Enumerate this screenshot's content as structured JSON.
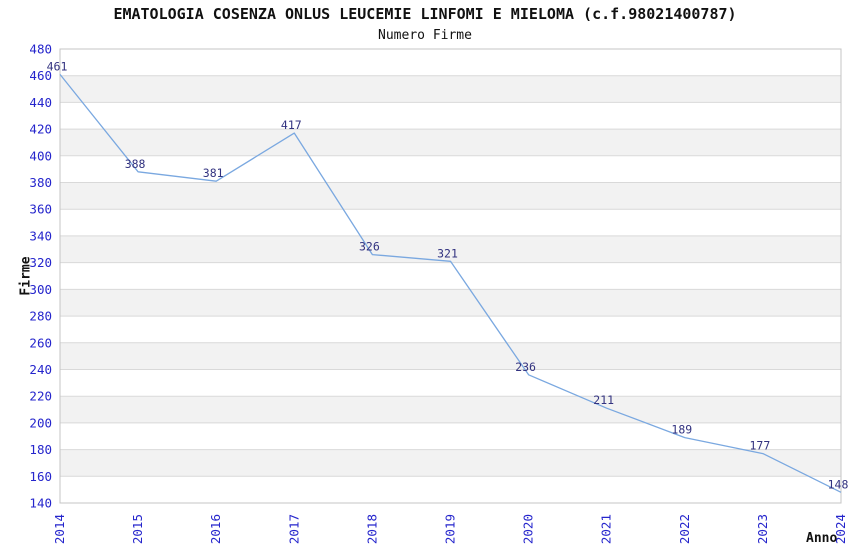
{
  "chart_data": {
    "type": "line",
    "title": "EMATOLOGIA COSENZA ONLUS LEUCEMIE LINFOMI E MIELOMA (c.f.98021400787)",
    "subtitle": "Numero Firme",
    "xlabel": "Anno",
    "ylabel": "Firme",
    "categories": [
      "2014",
      "2015",
      "2016",
      "2017",
      "2018",
      "2019",
      "2020",
      "2021",
      "2022",
      "2023",
      "2024"
    ],
    "values": [
      461,
      388,
      381,
      417,
      326,
      321,
      236,
      211,
      189,
      177,
      148
    ],
    "ylim": [
      140,
      480
    ],
    "ytick_step": 20,
    "grid": "horizontal gridlines with alternating gray bands",
    "legend": "none",
    "data_labels_visible": true,
    "colors": {
      "line": "#7aa8e0",
      "tick_label": "#2525cc",
      "data_label": "#333380",
      "band_fill": "#f2f2f2",
      "grid_line": "#d9d9d9",
      "plot_border": "#c4c4c4",
      "title_text": "#111111",
      "background": "#ffffff"
    }
  }
}
